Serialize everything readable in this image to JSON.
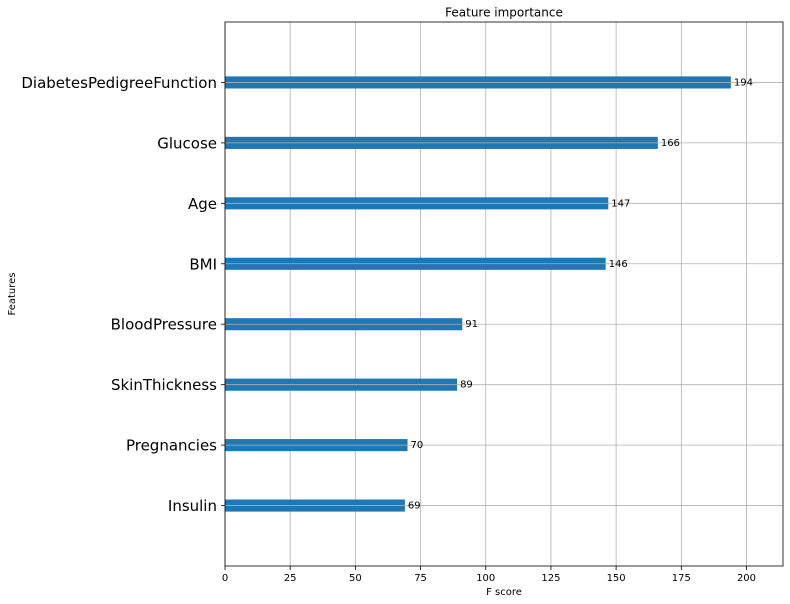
{
  "chart_data": {
    "type": "barh",
    "title": "Feature importance",
    "x_label": "F score",
    "y_label": "Features",
    "categories": [
      "DiabetesPedigreeFunction",
      "Glucose",
      "Age",
      "BMI",
      "BloodPressure",
      "SkinThickness",
      "Pregnancies",
      "Insulin"
    ],
    "values": [
      194,
      166,
      147,
      146,
      91,
      89,
      70,
      69
    ],
    "color": "#1f77b4",
    "xlim": [
      0,
      214
    ],
    "xticks": [
      0,
      25,
      50,
      75,
      100,
      125,
      150,
      175,
      200
    ],
    "grid": true
  }
}
